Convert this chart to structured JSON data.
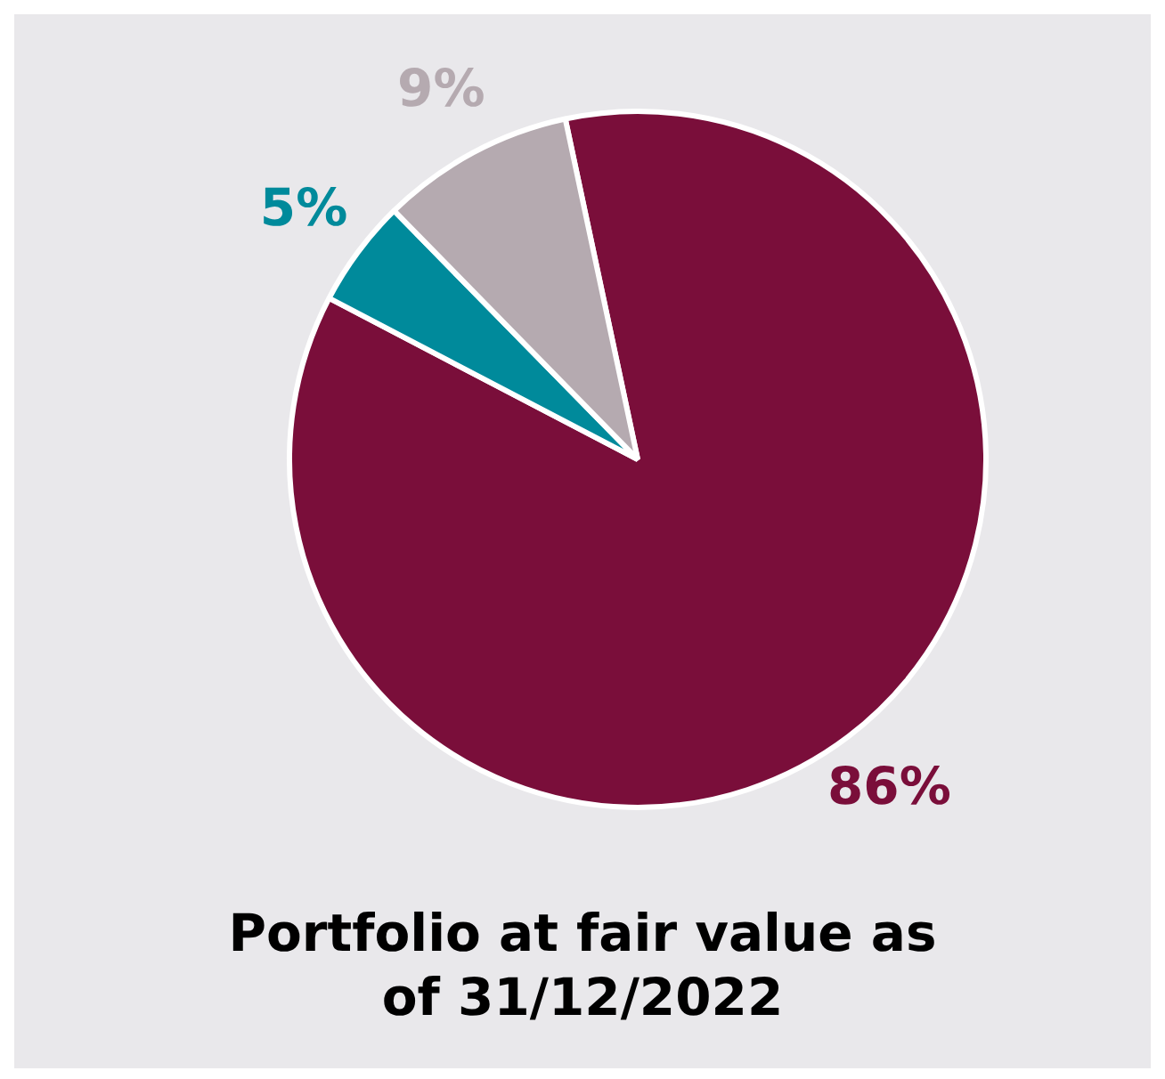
{
  "chart_data": {
    "type": "pie",
    "title": "Portfolio at fair value as of 31/12/2022",
    "categories": [
      null,
      null,
      null
    ],
    "values": [
      86,
      5,
      9
    ],
    "colors": [
      "#7a0e3a",
      "#008a9b",
      "#b5aab0"
    ],
    "value_labels": [
      "86%",
      "5%",
      "9%"
    ],
    "legend": false
  }
}
